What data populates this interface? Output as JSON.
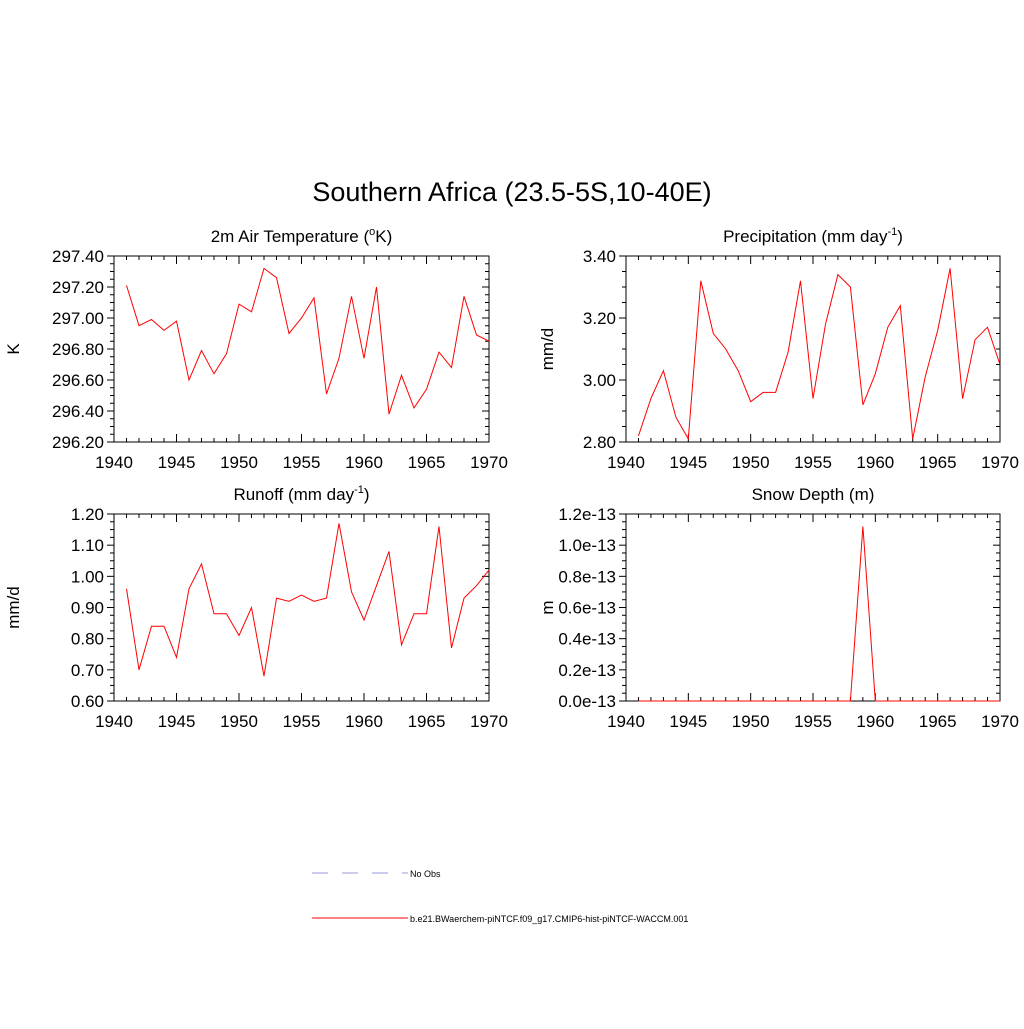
{
  "figure_title": "Southern Africa (23.5-5S,10-40E)",
  "colors": {
    "model": "#ff0000",
    "obs": "#9999dd",
    "axis": "#000000"
  },
  "legend": [
    {
      "label": "No Obs",
      "style": "dashed"
    },
    {
      "label": "b.e21.BWaerchem-piNTCF.f09_g17.CMIP6-hist-piNTCF-WACCM.001",
      "style": "solid"
    }
  ],
  "chart_data": [
    {
      "type": "line",
      "title": "2m Air Temperature (",
      "title_sup": "o",
      "title_after": "K)",
      "ylabel": "K",
      "xlim": [
        1940,
        1970
      ],
      "ylim": [
        296.2,
        297.4
      ],
      "xticks": [
        "1940",
        "1945",
        "1950",
        "1955",
        "1960",
        "1965",
        "1970"
      ],
      "yticks": [
        "296.20",
        "296.40",
        "296.60",
        "296.80",
        "297.00",
        "297.20",
        "297.40"
      ],
      "x": [
        1941,
        1942,
        1943,
        1944,
        1945,
        1946,
        1947,
        1948,
        1949,
        1950,
        1951,
        1952,
        1953,
        1954,
        1955,
        1956,
        1957,
        1958,
        1959,
        1960,
        1961,
        1962,
        1963,
        1964,
        1965,
        1966,
        1967,
        1968,
        1969,
        1970
      ],
      "values": [
        297.21,
        296.95,
        296.99,
        296.92,
        296.98,
        296.6,
        296.79,
        296.64,
        296.77,
        297.09,
        297.04,
        297.32,
        297.26,
        296.9,
        297.0,
        297.13,
        296.51,
        296.74,
        297.14,
        296.74,
        297.2,
        296.38,
        296.63,
        296.42,
        296.54,
        296.78,
        296.68,
        297.14,
        296.89,
        296.85
      ]
    },
    {
      "type": "line",
      "title": "Precipitation (mm day",
      "title_sup": "-1",
      "title_after": ")",
      "ylabel": "mm/d",
      "xlim": [
        1940,
        1970
      ],
      "ylim": [
        2.8,
        3.4
      ],
      "xticks": [
        "1940",
        "1945",
        "1950",
        "1955",
        "1960",
        "1965",
        "1970"
      ],
      "yticks": [
        "2.80",
        "3.00",
        "3.20",
        "3.40"
      ],
      "x": [
        1941,
        1942,
        1943,
        1944,
        1945,
        1946,
        1947,
        1948,
        1949,
        1950,
        1951,
        1952,
        1953,
        1954,
        1955,
        1956,
        1957,
        1958,
        1959,
        1960,
        1961,
        1962,
        1963,
        1964,
        1965,
        1966,
        1967,
        1968,
        1969,
        1970
      ],
      "values": [
        2.82,
        2.94,
        3.03,
        2.88,
        2.81,
        3.32,
        3.15,
        3.1,
        3.03,
        2.93,
        2.96,
        2.96,
        3.09,
        3.32,
        2.94,
        3.18,
        3.34,
        3.3,
        2.92,
        3.02,
        3.17,
        3.24,
        2.81,
        3.01,
        3.16,
        3.36,
        2.94,
        3.13,
        3.17,
        3.05
      ]
    },
    {
      "type": "line",
      "title": "Runoff (mm day",
      "title_sup": "-1",
      "title_after": ")",
      "ylabel": "mm/d",
      "xlim": [
        1940,
        1970
      ],
      "ylim": [
        0.6,
        1.2
      ],
      "xticks": [
        "1940",
        "1945",
        "1950",
        "1955",
        "1960",
        "1965",
        "1970"
      ],
      "yticks": [
        "0.60",
        "0.70",
        "0.80",
        "0.90",
        "1.00",
        "1.10",
        "1.20"
      ],
      "x": [
        1941,
        1942,
        1943,
        1944,
        1945,
        1946,
        1947,
        1948,
        1949,
        1950,
        1951,
        1952,
        1953,
        1954,
        1955,
        1956,
        1957,
        1958,
        1959,
        1960,
        1961,
        1962,
        1963,
        1964,
        1965,
        1966,
        1967,
        1968,
        1969,
        1970
      ],
      "values": [
        0.96,
        0.7,
        0.84,
        0.84,
        0.74,
        0.96,
        1.04,
        0.88,
        0.88,
        0.81,
        0.9,
        0.68,
        0.93,
        0.92,
        0.94,
        0.92,
        0.93,
        1.17,
        0.95,
        0.86,
        0.97,
        1.08,
        0.78,
        0.88,
        0.88,
        1.16,
        0.77,
        0.93,
        0.97,
        1.02
      ]
    },
    {
      "type": "line",
      "title": "Snow Depth (m)",
      "title_sup": "",
      "title_after": "",
      "ylabel": "m",
      "xlim": [
        1940,
        1970
      ],
      "ylim": [
        0,
        1.2e-13
      ],
      "xticks": [
        "1940",
        "1945",
        "1950",
        "1955",
        "1960",
        "1965",
        "1970"
      ],
      "yticks": [
        "0.0e-13",
        "0.2e-13",
        "0.4e-13",
        "0.6e-13",
        "0.8e-13",
        "1.0e-13",
        "1.2e-13"
      ],
      "x": [
        1941,
        1942,
        1943,
        1944,
        1945,
        1946,
        1947,
        1948,
        1949,
        1950,
        1951,
        1952,
        1953,
        1954,
        1955,
        1956,
        1957,
        1958,
        1959,
        1960,
        1961,
        1962,
        1963,
        1964,
        1965,
        1966,
        1967,
        1968,
        1969,
        1970
      ],
      "values": [
        0,
        0,
        0,
        0,
        0,
        0,
        0,
        0,
        0,
        0,
        0,
        0,
        0,
        0,
        0,
        0,
        0,
        0,
        1.12e-13,
        0,
        0,
        0,
        0,
        0,
        0,
        0,
        0,
        0,
        0,
        0
      ]
    }
  ]
}
